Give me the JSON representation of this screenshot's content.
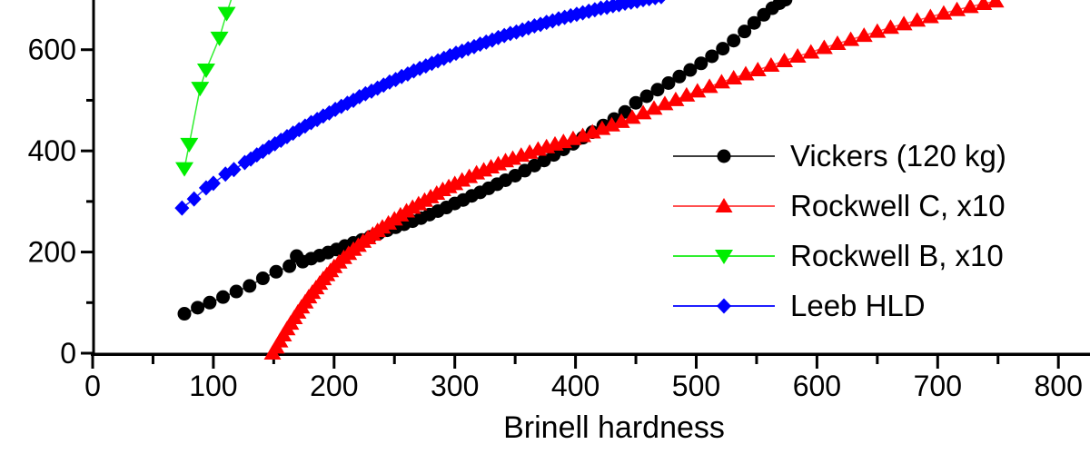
{
  "chart_data": {
    "type": "scatter",
    "title": "",
    "xlabel": "Brinell hardness",
    "ylabel": "",
    "xlim": [
      0,
      826
    ],
    "ylim": [
      0,
      700
    ],
    "grid": false,
    "legend_position": "right-center",
    "x_ticks": [
      0,
      100,
      200,
      300,
      400,
      500,
      600,
      700,
      800
    ],
    "x_minor_ticks": [
      50,
      150,
      250,
      350,
      450,
      550,
      650,
      750
    ],
    "y_ticks": [
      0,
      200,
      400,
      600
    ],
    "y_minor_ticks": [
      100,
      300,
      500
    ],
    "axis_color": "#000000",
    "series": [
      {
        "name": "Vickers (120 kg)",
        "color": "#000000",
        "line_color": "#3d3d3d",
        "marker": "circle",
        "points": [
          [
            76,
            78
          ],
          [
            87,
            90
          ],
          [
            97,
            100
          ],
          [
            108,
            111
          ],
          [
            119,
            122
          ],
          [
            130,
            133
          ],
          [
            141,
            148
          ],
          [
            152,
            161
          ],
          [
            163,
            172
          ],
          [
            169,
            192
          ],
          [
            174,
            181
          ],
          [
            181,
            187
          ],
          [
            188,
            193
          ],
          [
            195,
            199
          ],
          [
            202,
            205
          ],
          [
            209,
            212
          ],
          [
            216,
            218
          ],
          [
            223,
            224
          ],
          [
            230,
            230
          ],
          [
            237,
            237
          ],
          [
            244,
            243
          ],
          [
            251,
            249
          ],
          [
            258,
            255
          ],
          [
            265,
            261
          ],
          [
            272,
            267
          ],
          [
            279,
            274
          ],
          [
            286,
            281
          ],
          [
            293,
            288
          ],
          [
            300,
            296
          ],
          [
            307,
            303
          ],
          [
            314,
            311
          ],
          [
            321,
            318
          ],
          [
            328,
            326
          ],
          [
            335,
            334
          ],
          [
            342,
            342
          ],
          [
            350,
            351
          ],
          [
            358,
            361
          ],
          [
            366,
            371
          ],
          [
            374,
            381
          ],
          [
            382,
            392
          ],
          [
            390,
            403
          ],
          [
            398,
            414
          ],
          [
            406,
            426
          ],
          [
            414,
            437
          ],
          [
            423,
            450
          ],
          [
            432,
            463
          ],
          [
            441,
            477
          ],
          [
            450,
            495
          ],
          [
            459,
            508
          ],
          [
            468,
            521
          ],
          [
            477,
            534
          ],
          [
            486,
            547
          ],
          [
            495,
            560
          ],
          [
            504,
            573
          ],
          [
            513,
            587
          ],
          [
            522,
            602
          ],
          [
            531,
            618
          ],
          [
            540,
            636
          ],
          [
            548,
            653
          ],
          [
            556,
            669
          ],
          [
            563,
            682
          ],
          [
            569,
            692
          ],
          [
            574,
            699
          ]
        ]
      },
      {
        "name": "Rockwell C, x10",
        "color": "#ff0000",
        "line_color": "#ff5050",
        "marker": "triangle-up",
        "points": [
          [
            149,
            0
          ],
          [
            152,
            12
          ],
          [
            155,
            24
          ],
          [
            158,
            36
          ],
          [
            161,
            48
          ],
          [
            164,
            59
          ],
          [
            167,
            70
          ],
          [
            170,
            81
          ],
          [
            173,
            91
          ],
          [
            176,
            101
          ],
          [
            179,
            111
          ],
          [
            182,
            120
          ],
          [
            185,
            129
          ],
          [
            188,
            138
          ],
          [
            191,
            147
          ],
          [
            194,
            155
          ],
          [
            197,
            163
          ],
          [
            200,
            171
          ],
          [
            204,
            180
          ],
          [
            208,
            189
          ],
          [
            212,
            197
          ],
          [
            216,
            205
          ],
          [
            220,
            213
          ],
          [
            224,
            221
          ],
          [
            228,
            228
          ],
          [
            232,
            235
          ],
          [
            236,
            242
          ],
          [
            240,
            249
          ],
          [
            245,
            257
          ],
          [
            250,
            265
          ],
          [
            255,
            273
          ],
          [
            260,
            281
          ],
          [
            265,
            288
          ],
          [
            270,
            295
          ],
          [
            275,
            302
          ],
          [
            280,
            309
          ],
          [
            285,
            316
          ],
          [
            290,
            323
          ],
          [
            295,
            329
          ],
          [
            300,
            335
          ],
          [
            306,
            342
          ],
          [
            312,
            349
          ],
          [
            318,
            356
          ],
          [
            324,
            362
          ],
          [
            330,
            368
          ],
          [
            336,
            374
          ],
          [
            342,
            380
          ],
          [
            348,
            385
          ],
          [
            355,
            391
          ],
          [
            362,
            397
          ],
          [
            369,
            403
          ],
          [
            376,
            408
          ],
          [
            383,
            413
          ],
          [
            390,
            418
          ],
          [
            398,
            424
          ],
          [
            406,
            430
          ],
          [
            414,
            437
          ],
          [
            422,
            444
          ],
          [
            430,
            451
          ],
          [
            438,
            458
          ],
          [
            447,
            466
          ],
          [
            456,
            475
          ],
          [
            465,
            484
          ],
          [
            474,
            493
          ],
          [
            483,
            501
          ],
          [
            492,
            510
          ],
          [
            501,
            518
          ],
          [
            511,
            527
          ],
          [
            521,
            536
          ],
          [
            531,
            544
          ],
          [
            541,
            552
          ],
          [
            551,
            560
          ],
          [
            562,
            569
          ],
          [
            573,
            578
          ],
          [
            584,
            587
          ],
          [
            595,
            595
          ],
          [
            606,
            604
          ],
          [
            617,
            612
          ],
          [
            628,
            620
          ],
          [
            639,
            628
          ],
          [
            650,
            636
          ],
          [
            661,
            644
          ],
          [
            672,
            651
          ],
          [
            683,
            658
          ],
          [
            694,
            665
          ],
          [
            705,
            672
          ],
          [
            716,
            679
          ],
          [
            727,
            685
          ],
          [
            738,
            691
          ],
          [
            748,
            696
          ]
        ]
      },
      {
        "name": "Rockwell B, x10",
        "color": "#00ee00",
        "line_color": "#30ee30",
        "marker": "triangle-down",
        "points": [
          [
            76,
            365
          ],
          [
            80,
            413
          ],
          [
            89,
            524
          ],
          [
            94,
            560
          ],
          [
            105,
            623
          ],
          [
            111,
            672
          ],
          [
            118,
            722
          ]
        ]
      },
      {
        "name": "Leeb HLD",
        "color": "#0000ff",
        "line_color": "#2020ff",
        "marker": "diamond",
        "points": [
          [
            74,
            287
          ],
          [
            84,
            305
          ],
          [
            94,
            327
          ],
          [
            100,
            336
          ],
          [
            110,
            354
          ],
          [
            117,
            363
          ],
          [
            126,
            377
          ],
          [
            131,
            384
          ],
          [
            136,
            392
          ],
          [
            141,
            399
          ],
          [
            146,
            407
          ],
          [
            151,
            414
          ],
          [
            156,
            421
          ],
          [
            161,
            428
          ],
          [
            166,
            435
          ],
          [
            171,
            442
          ],
          [
            176,
            449
          ],
          [
            181,
            456
          ],
          [
            186,
            462
          ],
          [
            191,
            469
          ],
          [
            196,
            475
          ],
          [
            201,
            482
          ],
          [
            206,
            488
          ],
          [
            211,
            494
          ],
          [
            216,
            500
          ],
          [
            221,
            507
          ],
          [
            226,
            513
          ],
          [
            231,
            518
          ],
          [
            236,
            524
          ],
          [
            241,
            530
          ],
          [
            246,
            536
          ],
          [
            251,
            541
          ],
          [
            256,
            547
          ],
          [
            261,
            552
          ],
          [
            266,
            558
          ],
          [
            271,
            563
          ],
          [
            276,
            568
          ],
          [
            281,
            573
          ],
          [
            286,
            578
          ],
          [
            291,
            583
          ],
          [
            296,
            588
          ],
          [
            301,
            593
          ],
          [
            306,
            597
          ],
          [
            311,
            602
          ],
          [
            316,
            606
          ],
          [
            321,
            611
          ],
          [
            326,
            615
          ],
          [
            331,
            619
          ],
          [
            336,
            624
          ],
          [
            341,
            628
          ],
          [
            346,
            632
          ],
          [
            351,
            635
          ],
          [
            356,
            639
          ],
          [
            361,
            643
          ],
          [
            366,
            647
          ],
          [
            371,
            650
          ],
          [
            376,
            654
          ],
          [
            381,
            657
          ],
          [
            386,
            661
          ],
          [
            391,
            664
          ],
          [
            396,
            667
          ],
          [
            401,
            670
          ],
          [
            406,
            673
          ],
          [
            411,
            676
          ],
          [
            416,
            679
          ],
          [
            421,
            682
          ],
          [
            426,
            684
          ],
          [
            431,
            687
          ],
          [
            436,
            689
          ],
          [
            441,
            692
          ],
          [
            446,
            694
          ],
          [
            451,
            696
          ],
          [
            456,
            699
          ],
          [
            461,
            701
          ],
          [
            466,
            703
          ],
          [
            471,
            705
          ]
        ]
      }
    ]
  }
}
